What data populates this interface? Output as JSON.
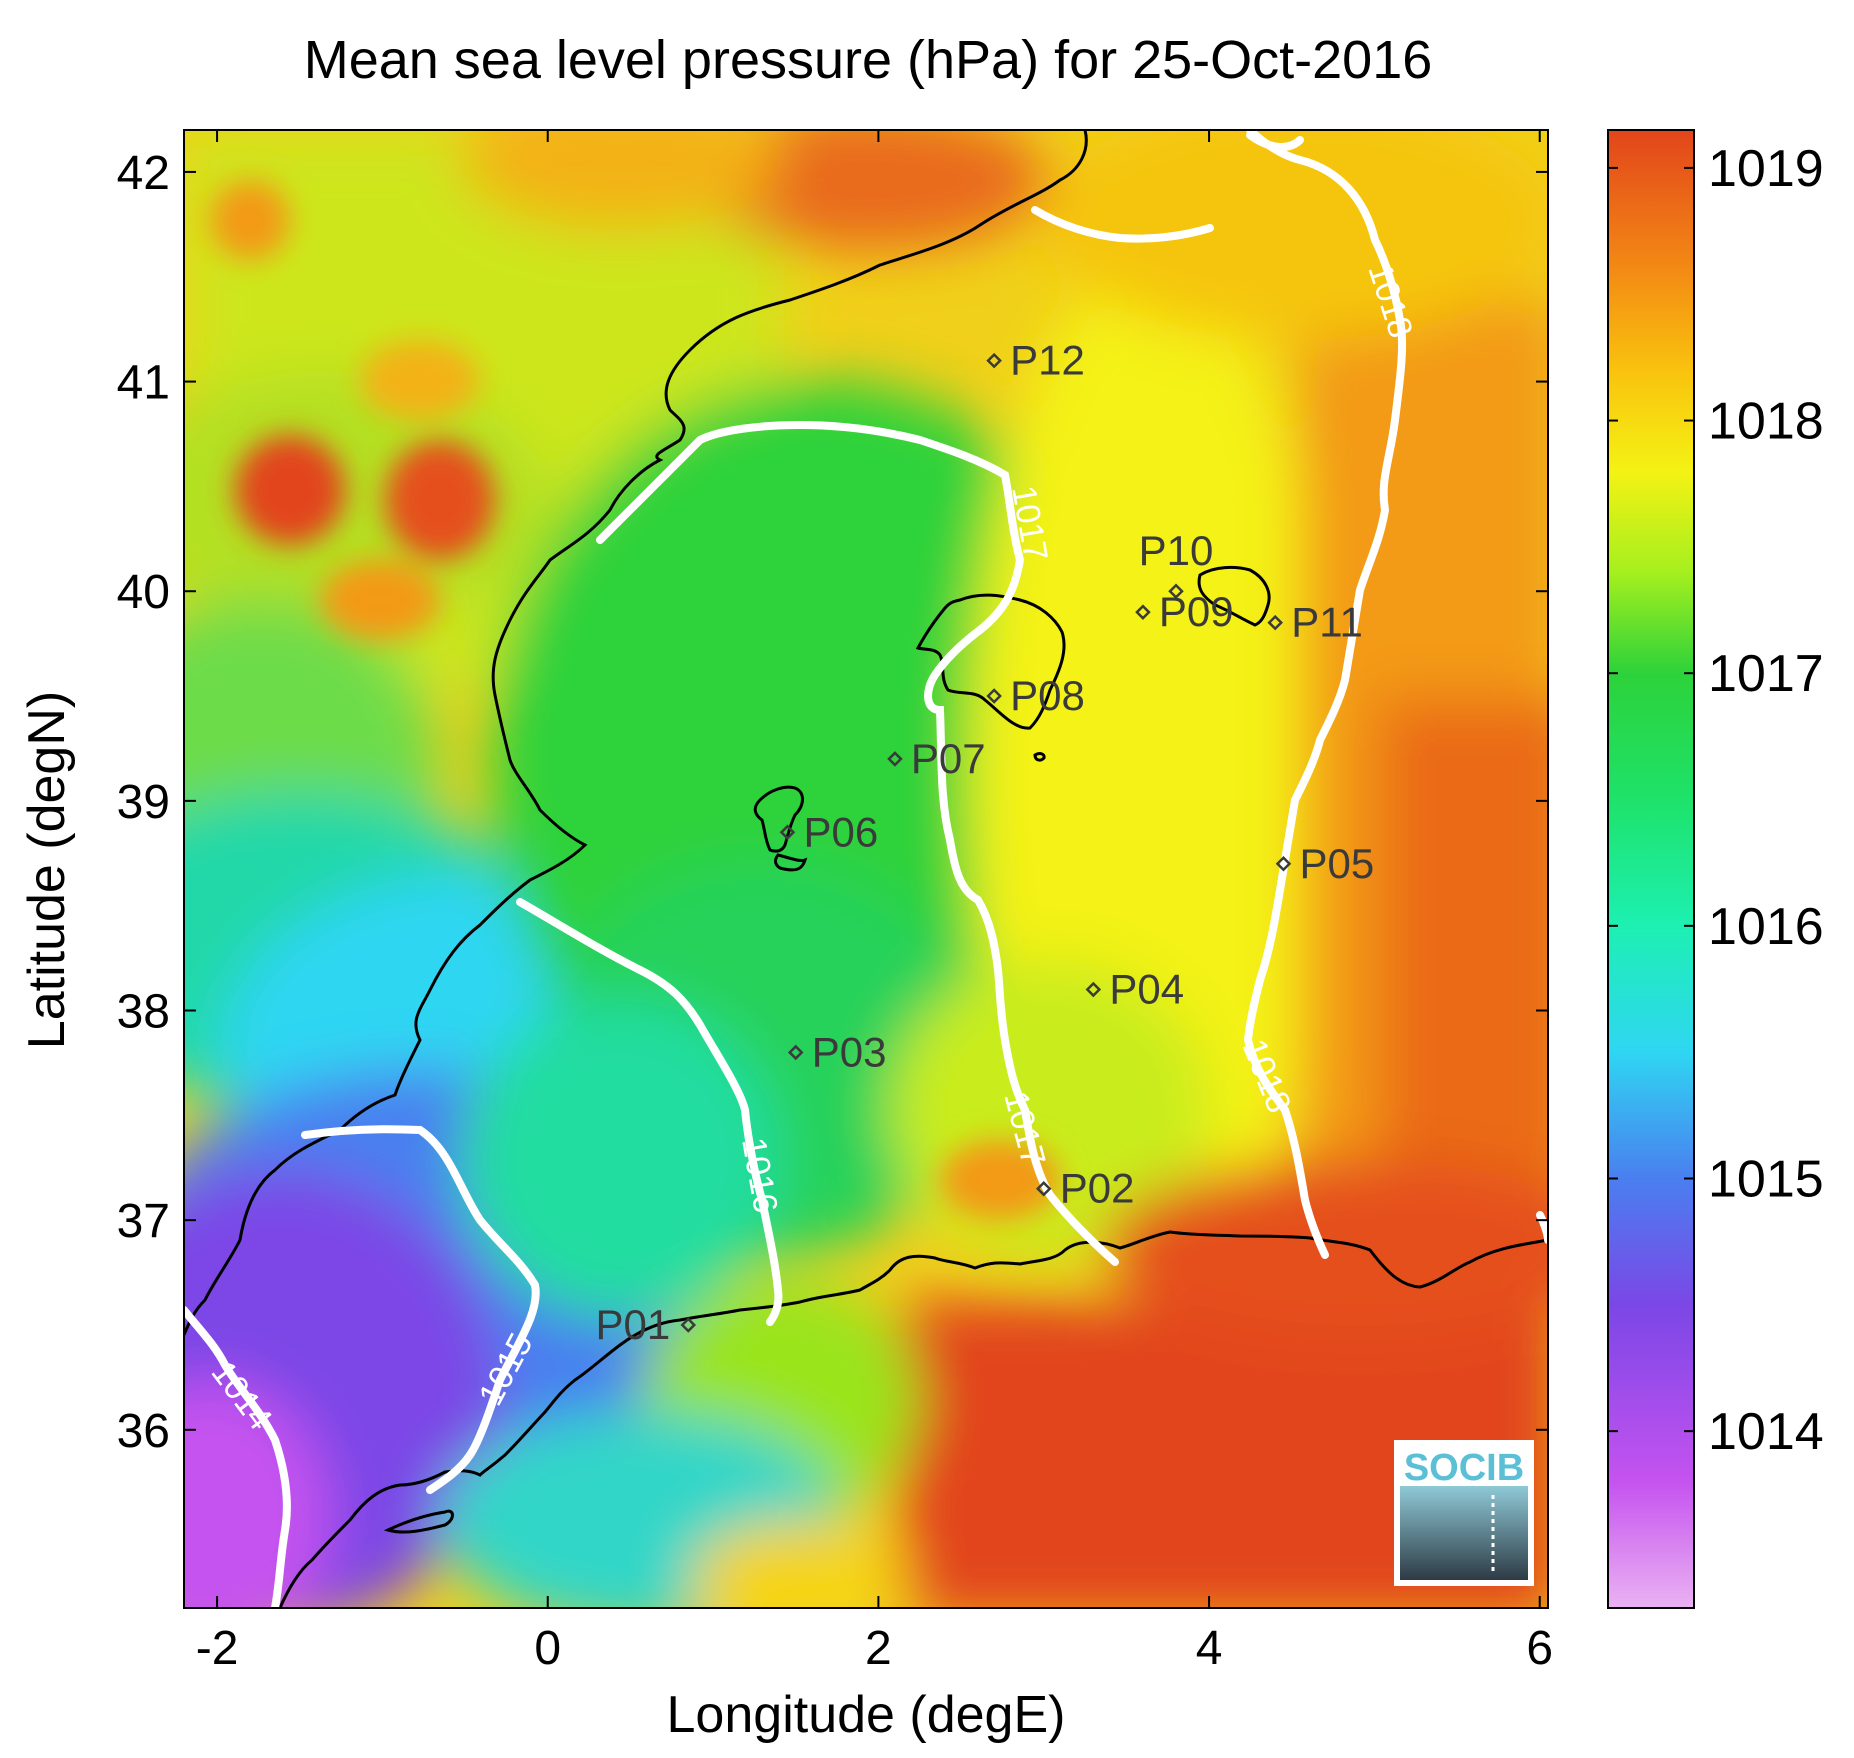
{
  "title": "Mean sea level pressure (hPa) for 25-Oct-2016",
  "xlabel": "Longitude (degE)",
  "ylabel": "Latitude (degN)",
  "colorbar": {
    "ticks": [
      "1014",
      "1015",
      "1016",
      "1017",
      "1018",
      "1019"
    ],
    "tick_values": [
      1014,
      1015,
      1016,
      1017,
      1018,
      1019
    ],
    "range": [
      1013.3,
      1019.15
    ],
    "stops": [
      {
        "v": 1013.3,
        "c": "#eab2f2"
      },
      {
        "v": 1013.8,
        "c": "#c553ef"
      },
      {
        "v": 1014.5,
        "c": "#7b47e6"
      },
      {
        "v": 1015.0,
        "c": "#4a7ff0"
      },
      {
        "v": 1015.5,
        "c": "#2fd6f2"
      },
      {
        "v": 1016.0,
        "c": "#1df0b2"
      },
      {
        "v": 1016.5,
        "c": "#1ee26a"
      },
      {
        "v": 1017.0,
        "c": "#2dd23a"
      },
      {
        "v": 1017.4,
        "c": "#a6ef1e"
      },
      {
        "v": 1017.8,
        "c": "#f4f214"
      },
      {
        "v": 1018.2,
        "c": "#f9c20e"
      },
      {
        "v": 1018.6,
        "c": "#f38a14"
      },
      {
        "v": 1019.15,
        "c": "#e2451b"
      }
    ]
  },
  "chart_data": {
    "type": "heatmap",
    "title": "Mean sea level pressure (hPa) for 25-Oct-2016",
    "xlabel": "Longitude (degE)",
    "ylabel": "Latitude (degN)",
    "xlim": [
      -2.2,
      6.05
    ],
    "ylim": [
      35.15,
      42.2
    ],
    "xticks": [
      -2,
      0,
      2,
      4,
      6
    ],
    "yticks": [
      36,
      37,
      38,
      39,
      40,
      41,
      42
    ],
    "contour_levels": [
      "1014",
      "1015",
      "1016",
      "1017",
      "1018"
    ],
    "stations": [
      {
        "name": "P01",
        "lon": 0.85,
        "lat": 36.5
      },
      {
        "name": "P02",
        "lon": 3.0,
        "lat": 37.15
      },
      {
        "name": "P03",
        "lon": 1.5,
        "lat": 37.8
      },
      {
        "name": "P04",
        "lon": 3.3,
        "lat": 38.1
      },
      {
        "name": "P05",
        "lon": 4.45,
        "lat": 38.7
      },
      {
        "name": "P06",
        "lon": 1.45,
        "lat": 38.85
      },
      {
        "name": "P07",
        "lon": 2.1,
        "lat": 39.2
      },
      {
        "name": "P08",
        "lon": 2.7,
        "lat": 39.5
      },
      {
        "name": "P09",
        "lon": 3.6,
        "lat": 39.9
      },
      {
        "name": "P10",
        "lon": 3.8,
        "lat": 40.0
      },
      {
        "name": "P11",
        "lon": 4.4,
        "lat": 39.85
      },
      {
        "name": "P12",
        "lon": 2.7,
        "lat": 41.1
      }
    ]
  },
  "logo": {
    "text": "SOCIB"
  }
}
